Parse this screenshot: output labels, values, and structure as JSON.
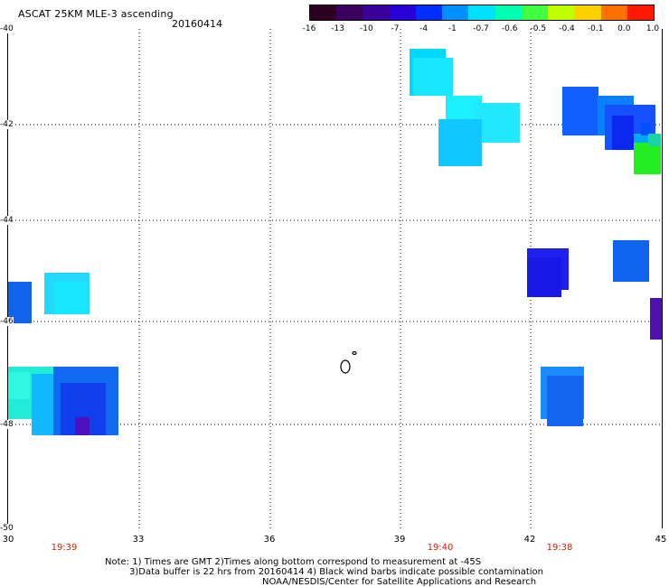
{
  "header": {
    "title": "ASCAT 25KM MLE-3 ascending",
    "date": "20160414"
  },
  "colorbar": {
    "labels": [
      "-16",
      "-13",
      "-10",
      "-7",
      "-4",
      "-1",
      "-0.7",
      "-0.6",
      "-0.5",
      "-0.4",
      "-0.1",
      "0.0",
      "1.0"
    ],
    "colors": [
      "#2b0020",
      "#3c0060",
      "#3a0099",
      "#2a00d8",
      "#0030ff",
      "#0090ff",
      "#00e0ff",
      "#00ffb0",
      "#40ff40",
      "#c0ff00",
      "#ffd000",
      "#ff7000",
      "#ff1a00"
    ]
  },
  "axes": {
    "lat_labels": [
      "-40",
      "-42",
      "-44",
      "-46",
      "-48",
      "-50"
    ],
    "lon_labels": [
      "30",
      "33",
      "36",
      "39",
      "42",
      "45"
    ],
    "time_labels": [
      "19:39",
      "19:40",
      "19:38"
    ],
    "grid": "dotted"
  },
  "notes": {
    "line1": "Note: 1) Times are GMT 2)Times along bottom correspond to measurement at -45S",
    "line2": "3)Data buffer is 22 hrs from 20160414 4) Black wind barbs indicate possible contamination",
    "line3": "NOAA/NESDIS/Center for Satellite Applications and Research"
  }
}
